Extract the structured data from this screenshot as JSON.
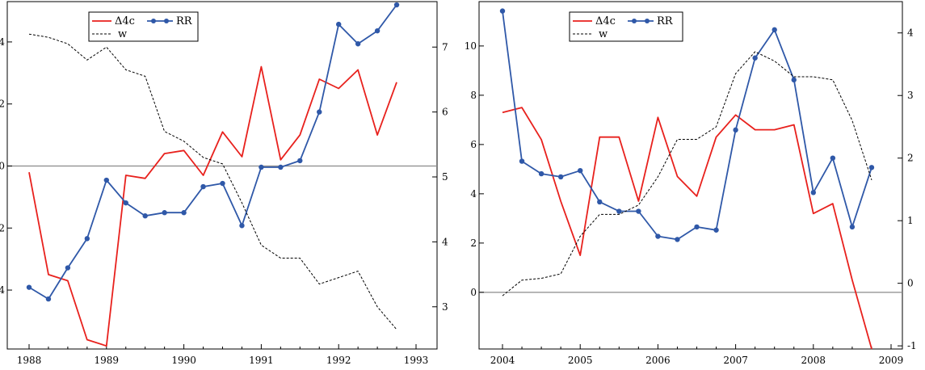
{
  "chart_data": [
    {
      "type": "line",
      "grid": false,
      "legend_placement": "top-left",
      "x_ticks": [
        "1988",
        "1989",
        "1990",
        "1991",
        "1992",
        "1993"
      ],
      "x_range": [
        1988,
        1993
      ],
      "y_left": {
        "ticks": [
          {
            "v": 4,
            "label": "4"
          },
          {
            "v": 2,
            "label": "2"
          },
          {
            "v": 0,
            "label": "0"
          },
          {
            "v": -2,
            "label": "2"
          },
          {
            "v": -4,
            "label": "4"
          }
        ],
        "range": [
          -5.9,
          5.3
        ]
      },
      "y_right": {
        "ticks": [
          {
            "v": 7,
            "label": "7"
          },
          {
            "v": 6,
            "label": "6"
          },
          {
            "v": 5,
            "label": "5"
          },
          {
            "v": 4,
            "label": "4"
          },
          {
            "v": 3,
            "label": "3"
          }
        ],
        "range": [
          2.35,
          7.7
        ]
      },
      "series": [
        {
          "name": "Δ4c",
          "axis": "left",
          "color": "#e8211d",
          "style": "solid",
          "markers": false,
          "x": [
            1988,
            1988.25,
            1988.5,
            1988.75,
            1989,
            1989.25,
            1989.5,
            1989.75,
            1990,
            1990.25,
            1990.5,
            1990.75,
            1991,
            1991.25,
            1991.5,
            1991.75,
            1992,
            1992.25,
            1992.5,
            1992.75
          ],
          "y": [
            -0.2,
            -3.5,
            -3.7,
            -5.6,
            -5.8,
            -0.3,
            -0.4,
            0.4,
            0.5,
            -0.3,
            1.1,
            0.3,
            3.2,
            0.2,
            1.0,
            2.8,
            2.5,
            3.1,
            1.0,
            2.7
          ]
        },
        {
          "name": "RR",
          "axis": "right",
          "color": "#2f58a8",
          "style": "solid",
          "markers": true,
          "x": [
            1988,
            1988.25,
            1988.5,
            1988.75,
            1989,
            1989.25,
            1989.5,
            1989.75,
            1990,
            1990.25,
            1990.5,
            1990.75,
            1991,
            1991.25,
            1991.5,
            1991.75,
            1992,
            1992.25,
            1992.5,
            1992.75
          ],
          "y": [
            3.3,
            3.12,
            3.6,
            4.05,
            4.95,
            4.6,
            4.4,
            4.45,
            4.45,
            4.85,
            4.9,
            4.25,
            5.15,
            5.15,
            5.25,
            6.0,
            7.35,
            7.05,
            7.25,
            7.65
          ]
        },
        {
          "name": "w",
          "axis": "right",
          "color": "#000000",
          "style": "dashed",
          "markers": false,
          "x": [
            1988,
            1988.25,
            1988.5,
            1988.75,
            1989,
            1989.25,
            1989.5,
            1989.75,
            1990,
            1990.25,
            1990.5,
            1990.75,
            1991,
            1991.25,
            1991.5,
            1991.75,
            1992,
            1992.25,
            1992.5,
            1992.75
          ],
          "y": [
            7.2,
            7.15,
            7.05,
            6.8,
            7.0,
            6.65,
            6.55,
            5.7,
            5.55,
            5.3,
            5.2,
            4.6,
            3.95,
            3.75,
            3.75,
            3.35,
            3.45,
            3.55,
            3.0,
            2.65
          ]
        }
      ]
    },
    {
      "type": "line",
      "grid": false,
      "legend_placement": "top-left",
      "x_ticks": [
        "2004",
        "2005",
        "2006",
        "2007",
        "2008",
        "2009"
      ],
      "x_range": [
        2004,
        2009
      ],
      "y_left": {
        "ticks": [
          {
            "v": 10,
            "label": "10"
          },
          {
            "v": 8,
            "label": "8"
          },
          {
            "v": 6,
            "label": "6"
          },
          {
            "v": 4,
            "label": "4"
          },
          {
            "v": 2,
            "label": "2"
          },
          {
            "v": 0,
            "label": "0"
          }
        ],
        "range": [
          -2.3,
          11.8
        ]
      },
      "y_right": {
        "ticks": [
          {
            "v": 4,
            "label": "4"
          },
          {
            "v": 3,
            "label": "3"
          },
          {
            "v": 2,
            "label": "2"
          },
          {
            "v": 1,
            "label": "1"
          },
          {
            "v": 0,
            "label": "0"
          },
          {
            "v": -1,
            "label": "-1"
          }
        ],
        "range": [
          -1.05,
          4.5
        ]
      },
      "series": [
        {
          "name": "Δ4c",
          "axis": "left",
          "color": "#e8211d",
          "style": "solid",
          "markers": false,
          "x": [
            2004,
            2004.25,
            2004.5,
            2004.75,
            2005,
            2005.25,
            2005.5,
            2005.75,
            2006,
            2006.25,
            2006.5,
            2006.75,
            2007,
            2007.25,
            2007.5,
            2007.75,
            2008,
            2008.25,
            2008.5,
            2008.75
          ],
          "y": [
            7.3,
            7.5,
            6.2,
            3.7,
            1.5,
            6.3,
            6.3,
            3.7,
            7.1,
            4.7,
            3.9,
            6.3,
            7.2,
            6.6,
            6.6,
            6.8,
            3.2,
            3.6,
            0.5,
            -2.3
          ]
        },
        {
          "name": "RR",
          "axis": "right",
          "color": "#2f58a8",
          "style": "solid",
          "markers": true,
          "x": [
            2004,
            2004.25,
            2004.5,
            2004.75,
            2005,
            2005.25,
            2005.5,
            2005.75,
            2006,
            2006.25,
            2006.5,
            2006.75,
            2007,
            2007.25,
            2007.5,
            2007.75,
            2008,
            2008.25,
            2008.5,
            2008.75
          ],
          "y": [
            4.35,
            1.95,
            1.75,
            1.7,
            1.8,
            1.3,
            1.15,
            1.15,
            0.75,
            0.7,
            0.9,
            0.85,
            2.45,
            3.6,
            4.05,
            3.25,
            1.45,
            2.0,
            0.9,
            1.85
          ]
        },
        {
          "name": "w",
          "axis": "right",
          "color": "#000000",
          "style": "dashed",
          "markers": false,
          "x": [
            2004,
            2004.25,
            2004.5,
            2004.75,
            2005,
            2005.25,
            2005.5,
            2005.75,
            2006,
            2006.25,
            2006.5,
            2006.75,
            2007,
            2007.25,
            2007.5,
            2007.75,
            2008,
            2008.25,
            2008.5,
            2008.75
          ],
          "y": [
            -0.2,
            0.05,
            0.08,
            0.15,
            0.75,
            1.1,
            1.1,
            1.25,
            1.7,
            2.3,
            2.3,
            2.5,
            3.35,
            3.7,
            3.55,
            3.3,
            3.3,
            3.25,
            2.6,
            1.65
          ]
        }
      ]
    }
  ]
}
